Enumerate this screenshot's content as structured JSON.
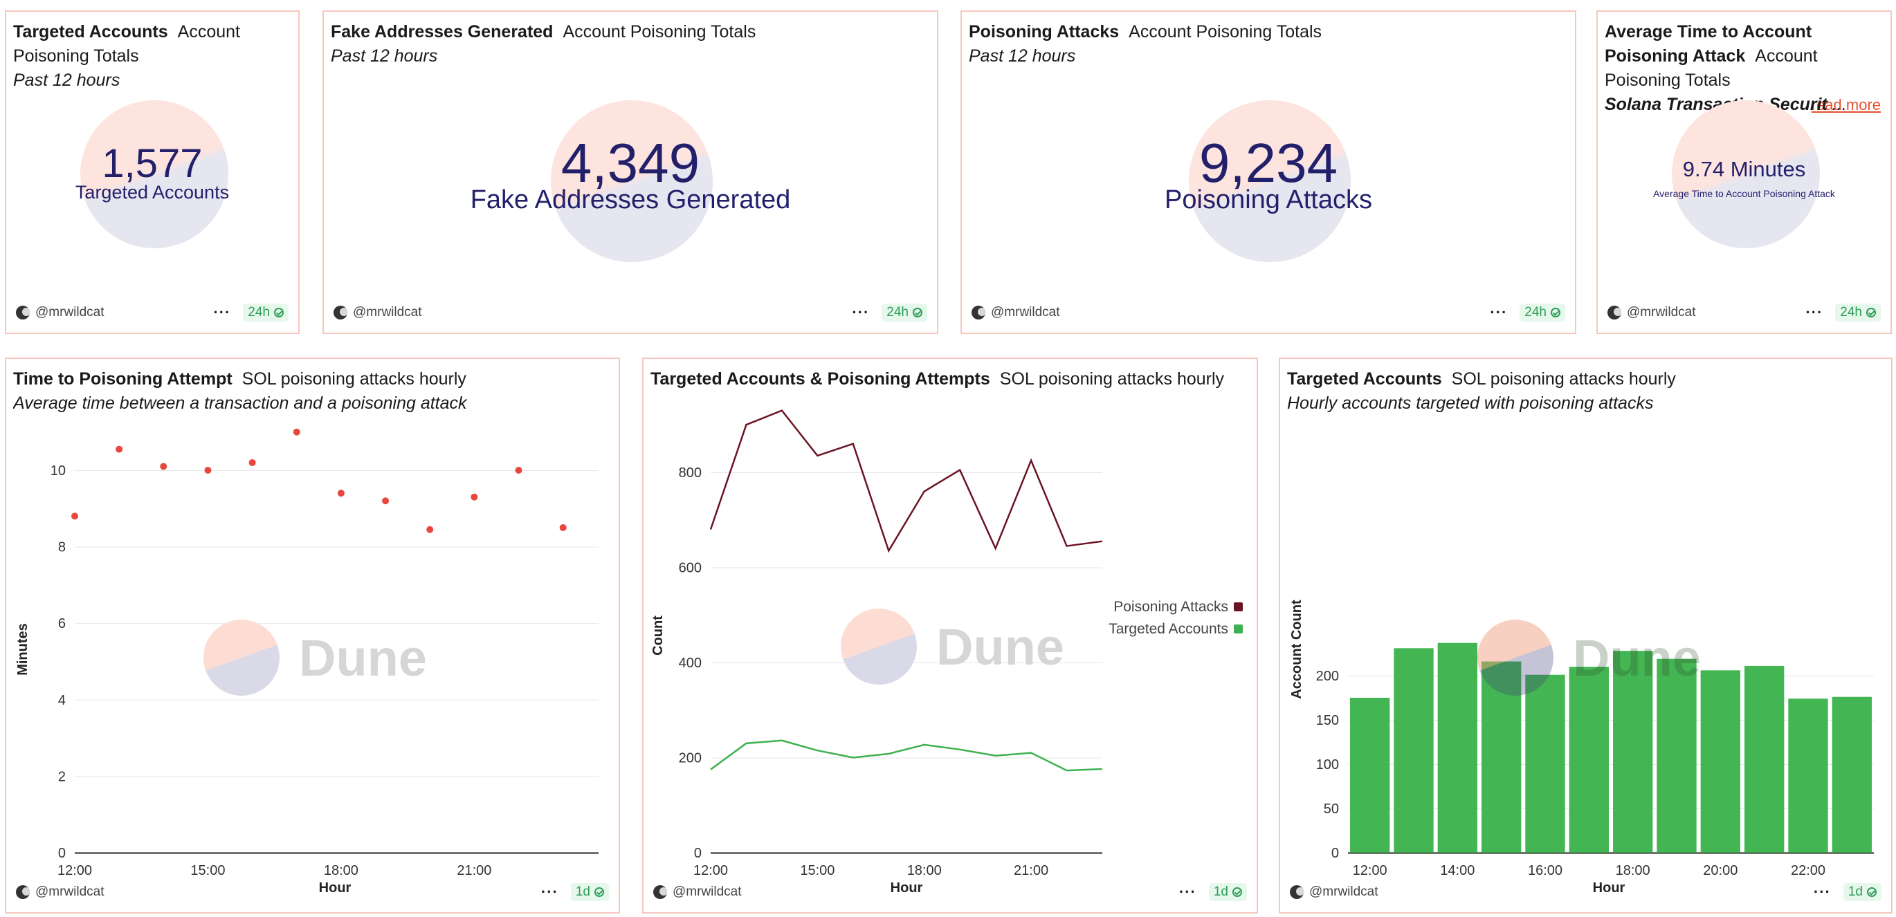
{
  "counters": [
    {
      "title": "Targeted Accounts",
      "query": "Account Poisoning Totals",
      "subtitle": "Past 12 hours",
      "value": "1,577",
      "label": "Targeted Accounts",
      "author": "@mrwildcat",
      "refresh": "24h"
    },
    {
      "title": "Fake Addresses Generated",
      "query": "Account Poisoning Totals",
      "subtitle": "Past 12 hours",
      "value": "4,349",
      "label": "Fake Addresses Generated",
      "author": "@mrwildcat",
      "refresh": "24h"
    },
    {
      "title": "Poisoning Attacks",
      "query": "Account Poisoning Totals",
      "subtitle": "Past 12 hours",
      "value": "9,234",
      "label": "Poisoning Attacks",
      "author": "@mrwildcat",
      "refresh": "24h"
    },
    {
      "title": "Average Time to Account Poisoning Attack",
      "query": "Account Poisoning Totals",
      "subtitle": "Solana Transaction Securit",
      "subtitle_more": "...",
      "read_more": "read more",
      "value": "9.74 Minutes",
      "label": "Average Time to Account Poisoning Attack",
      "author": "@mrwildcat",
      "refresh": "24h"
    }
  ],
  "charts": [
    {
      "title": "Time to Poisoning Attempt",
      "query": "SOL poisoning attacks hourly",
      "subtitle": "Average time between a transaction and a poisoning attack",
      "author": "@mrwildcat",
      "refresh": "1d"
    },
    {
      "title": "Targeted Accounts & Poisoning Attempts",
      "query": "SOL poisoning attacks hourly",
      "subtitle": "",
      "author": "@mrwildcat",
      "refresh": "1d"
    },
    {
      "title": "Targeted Accounts",
      "query": "SOL poisoning attacks hourly",
      "subtitle": "Hourly accounts targeted with poisoning attacks",
      "author": "@mrwildcat",
      "refresh": "1d"
    }
  ],
  "watermark": "Dune",
  "colors": {
    "scatter": "#e8473c",
    "attacks": "#6b1323",
    "accounts": "#3db14f",
    "bars": "#44b553",
    "counter_text": "#23206b"
  },
  "chart_data": [
    {
      "type": "scatter",
      "title": "Time to Poisoning Attempt",
      "xlabel": "Hour",
      "ylabel": "Minutes",
      "x": [
        12,
        13,
        14,
        15,
        16,
        17,
        18,
        19,
        20,
        21,
        22,
        23
      ],
      "values": [
        8.8,
        10.55,
        10.1,
        10.0,
        10.2,
        11.0,
        9.4,
        9.2,
        8.45,
        9.3,
        10.0,
        8.5
      ],
      "xticks": [
        12,
        15,
        18,
        21
      ],
      "xtick_labels": [
        "12:00",
        "15:00",
        "18:00",
        "21:00"
      ],
      "yticks": [
        0,
        2,
        4,
        6,
        8,
        10
      ],
      "ylim": [
        0,
        11.4
      ],
      "xlim": [
        12,
        23.8
      ]
    },
    {
      "type": "line",
      "title": "Targeted Accounts & Poisoning Attempts",
      "xlabel": "Hour",
      "ylabel": "Count",
      "x": [
        12,
        13,
        14,
        15,
        16,
        17,
        18,
        19,
        20,
        21,
        22,
        23
      ],
      "series": [
        {
          "name": "Poisoning Attacks",
          "values": [
            680,
            900,
            930,
            835,
            860,
            635,
            760,
            805,
            640,
            825,
            645,
            655
          ]
        },
        {
          "name": "Targeted Accounts",
          "values": [
            175,
            230,
            236,
            215,
            200,
            208,
            227,
            217,
            204,
            210,
            173,
            176
          ]
        }
      ],
      "xticks": [
        12,
        15,
        18,
        21
      ],
      "xtick_labels": [
        "12:00",
        "15:00",
        "18:00",
        "21:00"
      ],
      "yticks": [
        0,
        200,
        400,
        600,
        800
      ],
      "ylim": [
        0,
        950
      ],
      "xlim": [
        12,
        23
      ],
      "legend": "right"
    },
    {
      "type": "bar",
      "title": "Targeted Accounts",
      "xlabel": "Hour",
      "ylabel": "Account Count",
      "categories": [
        "12:00",
        "13:00",
        "14:00",
        "15:00",
        "16:00",
        "17:00",
        "18:00",
        "19:00",
        "20:00",
        "21:00",
        "22:00",
        "23:00"
      ],
      "values": [
        175,
        231,
        237,
        216,
        201,
        210,
        228,
        219,
        206,
        211,
        174,
        176
      ],
      "xtick_labels": [
        "12:00",
        "14:00",
        "16:00",
        "18:00",
        "20:00",
        "22:00"
      ],
      "yticks": [
        0,
        50,
        100,
        150,
        200
      ],
      "ylim": [
        0,
        245
      ]
    }
  ]
}
